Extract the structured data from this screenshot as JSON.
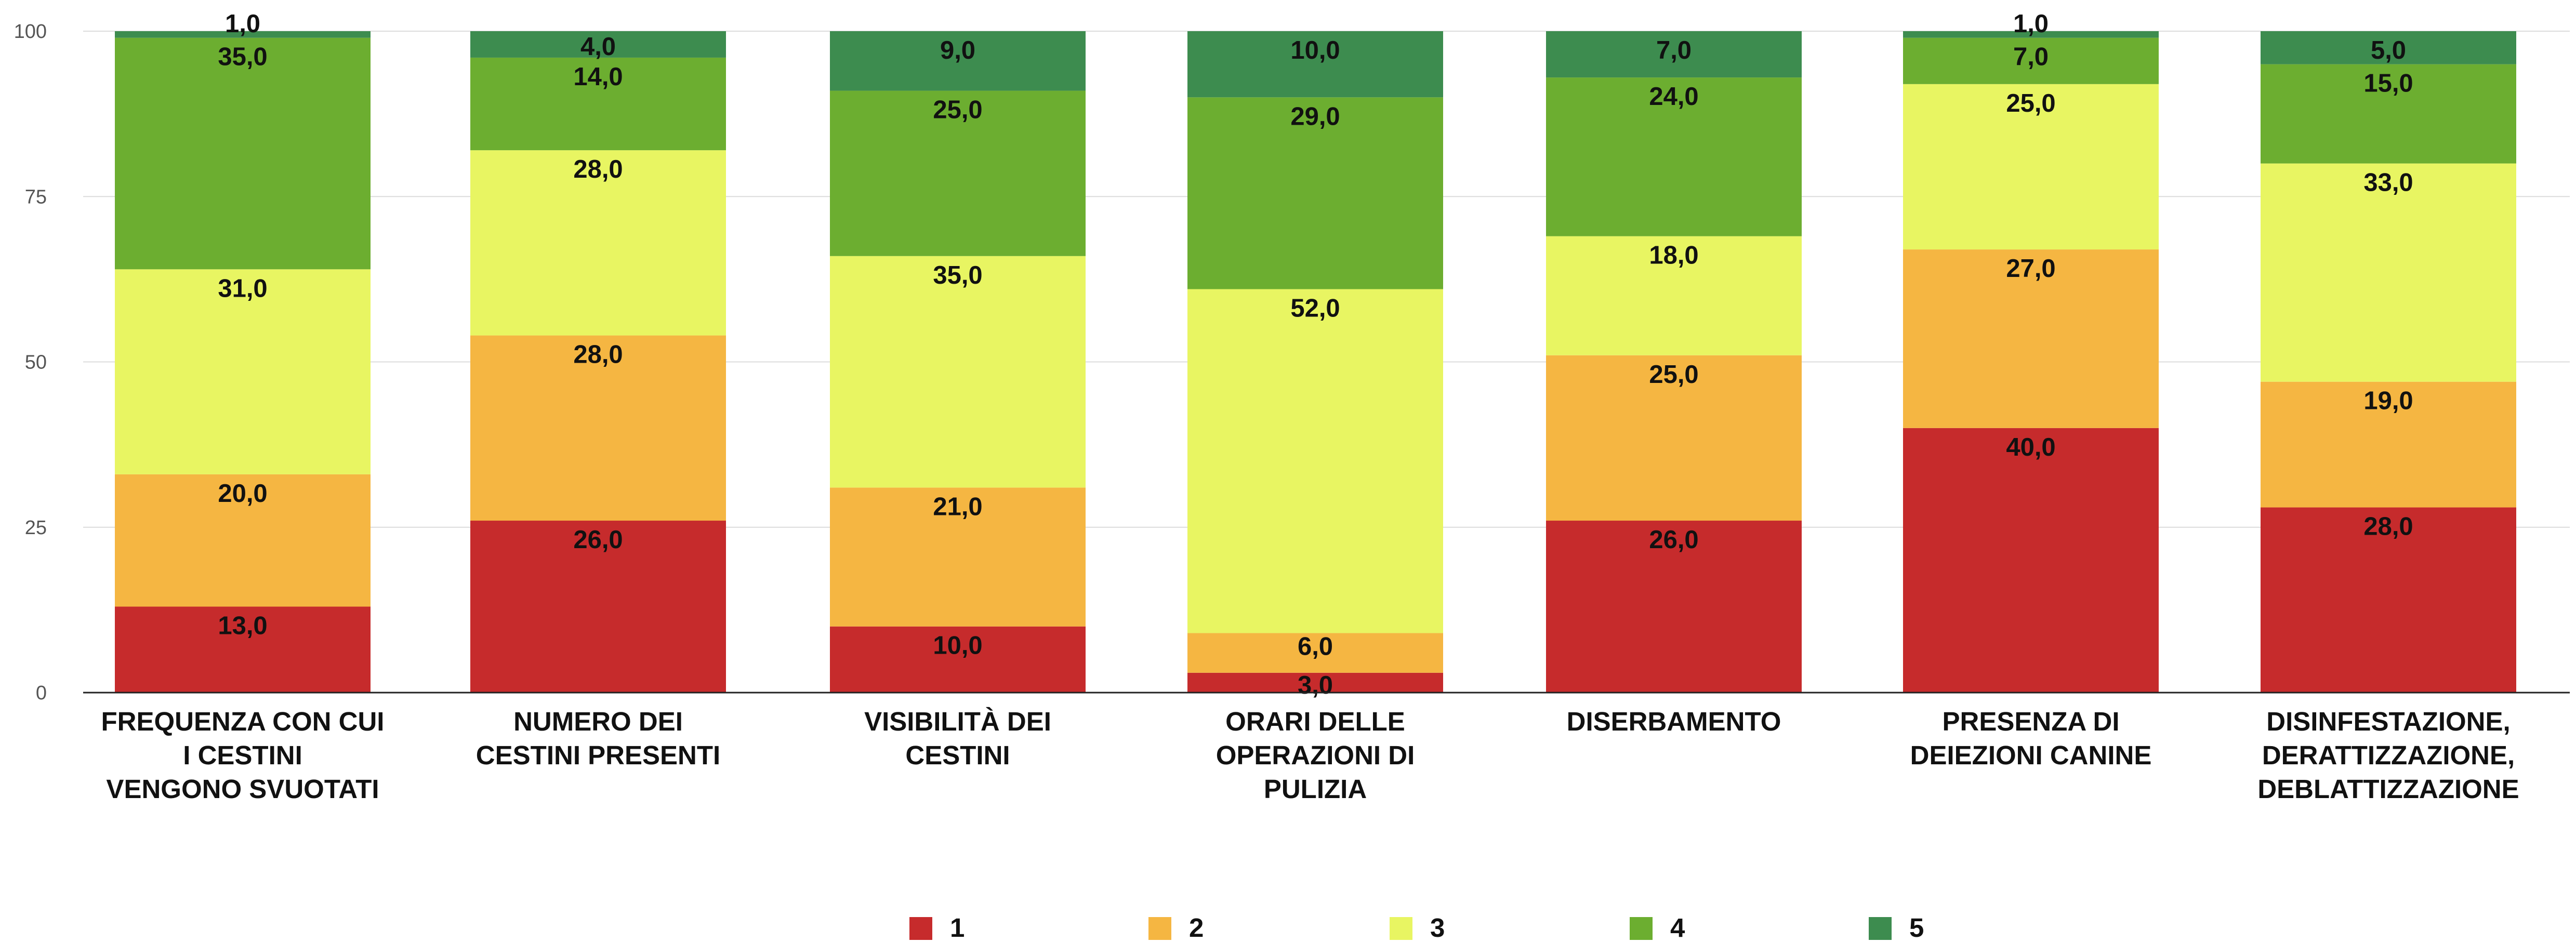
{
  "chart_data": {
    "type": "bar",
    "stacked": true,
    "title": "",
    "xlabel": "",
    "ylabel": "",
    "ylim": [
      0,
      100
    ],
    "yticks": [
      "0",
      "25",
      "50",
      "75",
      "100"
    ],
    "grid": true,
    "legend_position": "bottom",
    "categories": [
      [
        "FREQUENZA CON CUI",
        "I CESTINI",
        "VENGONO SVUOTATI"
      ],
      [
        "NUMERO DEI",
        "CESTINI PRESENTI"
      ],
      [
        "VISIBILITÀ DEI",
        "CESTINI"
      ],
      [
        "ORARI DELLE",
        "OPERAZIONI DI",
        "PULIZIA"
      ],
      [
        "DISERBAMENTO"
      ],
      [
        "PRESENZA DI",
        "DEIEZIONI CANINE"
      ],
      [
        "DISINFESTAZIONE,",
        "DERATTIZZAZIONE,",
        "DEBLATTIZZAZIONE"
      ]
    ],
    "series": [
      {
        "name": "1",
        "color": "#c62b2c",
        "values": [
          13,
          26,
          10,
          3,
          26,
          40,
          28
        ],
        "labels": [
          "13,0",
          "26,0",
          "10,0",
          "3,0",
          "26,0",
          "40,0",
          "28,0"
        ]
      },
      {
        "name": "2",
        "color": "#f5b642",
        "values": [
          20,
          28,
          21,
          6,
          25,
          27,
          19
        ],
        "labels": [
          "20,0",
          "28,0",
          "21,0",
          "6,0",
          "25,0",
          "27,0",
          "19,0"
        ]
      },
      {
        "name": "3",
        "color": "#e8f562",
        "values": [
          31,
          28,
          35,
          52,
          18,
          25,
          33
        ],
        "labels": [
          "31,0",
          "28,0",
          "35,0",
          "52,0",
          "18,0",
          "25,0",
          "33,0"
        ]
      },
      {
        "name": "4",
        "color": "#6cae30",
        "values": [
          35,
          14,
          25,
          29,
          24,
          7,
          15
        ],
        "labels": [
          "35,0",
          "14,0",
          "25,0",
          "29,0",
          "24,0",
          "7,0",
          "15,0"
        ]
      },
      {
        "name": "5",
        "color": "#3d8c4f",
        "values": [
          1,
          4,
          9,
          10,
          7,
          1,
          5
        ],
        "labels": [
          "1,0",
          "4,0",
          "9,0",
          "10,0",
          "7,0",
          "1,0",
          "5,0"
        ]
      }
    ]
  }
}
